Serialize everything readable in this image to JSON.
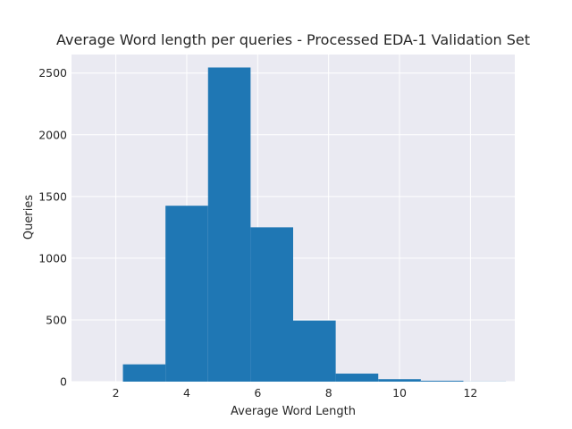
{
  "chart_data": {
    "type": "bar",
    "title": "Average Word length per queries - Processed EDA-1 Validation Set",
    "xlabel": "Average Word Length",
    "ylabel": "Queries",
    "xlim": [
      0.75,
      13.25
    ],
    "ylim": [
      0,
      2650
    ],
    "xticks": [
      2,
      4,
      6,
      8,
      10,
      12
    ],
    "xtick_labels": [
      "2",
      "4",
      "6",
      "8",
      "10",
      "12"
    ],
    "yticks": [
      0,
      500,
      1000,
      1500,
      2000,
      2500
    ],
    "ytick_labels": [
      "0",
      "500",
      "1000",
      "1500",
      "2000",
      "2500"
    ],
    "grid": true,
    "bar_color": "#1f77b4",
    "background_color": "#eaeaf2",
    "bins": [
      {
        "x0": 2.2,
        "x1": 3.4,
        "count": 140
      },
      {
        "x0": 3.4,
        "x1": 4.6,
        "count": 1425
      },
      {
        "x0": 4.6,
        "x1": 5.8,
        "count": 2545
      },
      {
        "x0": 5.8,
        "x1": 7.0,
        "count": 1250
      },
      {
        "x0": 7.0,
        "x1": 8.2,
        "count": 495
      },
      {
        "x0": 8.2,
        "x1": 9.4,
        "count": 65
      },
      {
        "x0": 9.4,
        "x1": 10.6,
        "count": 20
      },
      {
        "x0": 10.6,
        "x1": 11.8,
        "count": 7
      },
      {
        "x0": 11.8,
        "x1": 13.0,
        "count": 1
      }
    ]
  }
}
